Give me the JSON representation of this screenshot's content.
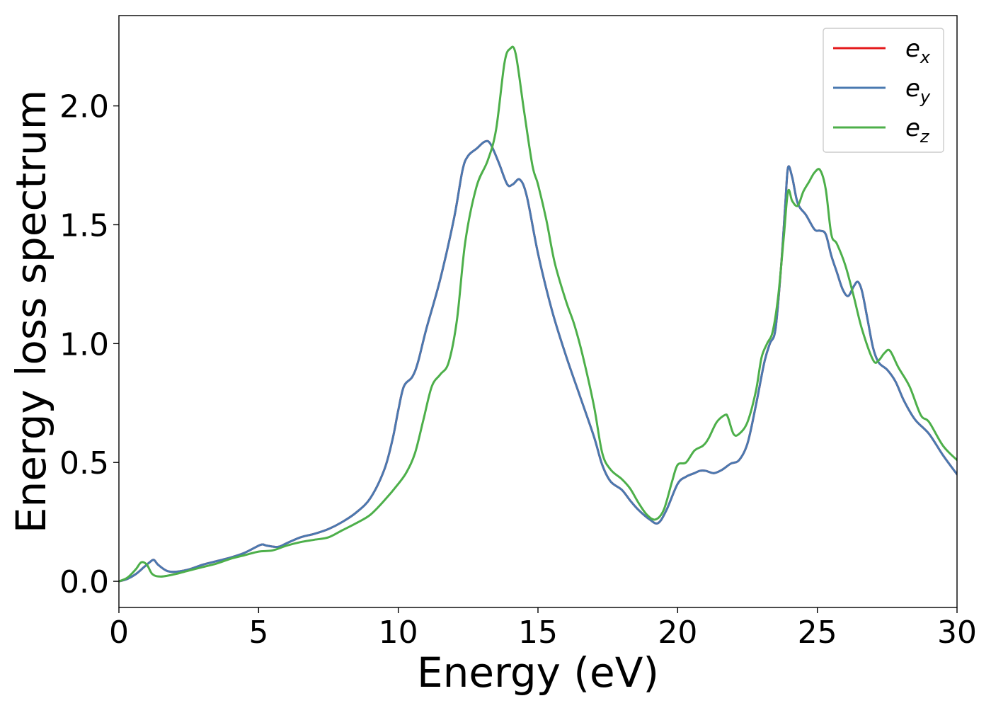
{
  "chart_data": {
    "type": "line",
    "title": "",
    "xlabel": "Energy (eV)",
    "ylabel": "Energy loss spectrum",
    "xlim": [
      0,
      30
    ],
    "ylim": [
      -0.11,
      2.38
    ],
    "xticks": [
      0,
      5,
      10,
      15,
      20,
      25,
      30
    ],
    "xtick_labels": [
      "0",
      "5",
      "10",
      "15",
      "20",
      "25",
      "30"
    ],
    "yticks": [
      0.0,
      0.5,
      1.0,
      1.5,
      2.0
    ],
    "ytick_labels": [
      "0.0",
      "0.5",
      "1.0",
      "1.5",
      "2.0"
    ],
    "grid": false,
    "legend_position": "top-right",
    "series": [
      {
        "name": "e_x",
        "label_base": "e",
        "label_sub": "x",
        "color": "#e41a1c",
        "x": [
          0,
          0.3,
          0.6,
          0.9,
          1.1,
          1.25,
          1.4,
          1.7,
          2.0,
          2.5,
          3.0,
          3.5,
          4.0,
          4.5,
          5.0,
          5.15,
          5.3,
          5.7,
          6.0,
          6.5,
          7.0,
          7.5,
          8.0,
          8.5,
          9.0,
          9.5,
          9.8,
          10.0,
          10.2,
          10.5,
          10.7,
          11.0,
          11.5,
          12.0,
          12.3,
          12.5,
          12.8,
          13.1,
          13.3,
          13.6,
          13.9,
          14.1,
          14.35,
          14.6,
          15.0,
          15.5,
          16.0,
          16.5,
          17.0,
          17.3,
          17.6,
          18.0,
          18.3,
          18.6,
          19.0,
          19.3,
          19.6,
          20.0,
          20.3,
          20.6,
          20.8,
          21.0,
          21.3,
          21.6,
          21.9,
          22.2,
          22.5,
          22.8,
          23.1,
          23.3,
          23.5,
          23.7,
          23.85,
          23.95,
          24.1,
          24.3,
          24.6,
          24.9,
          25.1,
          25.3,
          25.5,
          25.7,
          25.9,
          26.1,
          26.3,
          26.45,
          26.6,
          26.8,
          27.0,
          27.2,
          27.5,
          27.8,
          28.1,
          28.5,
          29.0,
          29.5,
          30.0
        ],
        "y": [
          0.0,
          0.01,
          0.03,
          0.06,
          0.08,
          0.09,
          0.07,
          0.045,
          0.04,
          0.05,
          0.07,
          0.085,
          0.1,
          0.12,
          0.15,
          0.155,
          0.15,
          0.145,
          0.16,
          0.185,
          0.2,
          0.22,
          0.25,
          0.29,
          0.35,
          0.47,
          0.6,
          0.72,
          0.82,
          0.86,
          0.92,
          1.06,
          1.27,
          1.53,
          1.73,
          1.79,
          1.82,
          1.85,
          1.84,
          1.76,
          1.67,
          1.67,
          1.69,
          1.62,
          1.38,
          1.14,
          0.95,
          0.78,
          0.61,
          0.49,
          0.42,
          0.385,
          0.34,
          0.3,
          0.26,
          0.245,
          0.3,
          0.41,
          0.44,
          0.455,
          0.465,
          0.465,
          0.455,
          0.47,
          0.495,
          0.51,
          0.58,
          0.74,
          0.92,
          1.0,
          1.06,
          1.32,
          1.58,
          1.74,
          1.7,
          1.59,
          1.54,
          1.48,
          1.475,
          1.46,
          1.37,
          1.3,
          1.23,
          1.2,
          1.24,
          1.26,
          1.22,
          1.1,
          0.98,
          0.92,
          0.89,
          0.84,
          0.76,
          0.68,
          0.62,
          0.53,
          0.45
        ]
      },
      {
        "name": "e_y",
        "label_base": "e",
        "label_sub": "y",
        "color": "#4a79b0",
        "x": [
          0,
          0.3,
          0.6,
          0.9,
          1.1,
          1.25,
          1.4,
          1.7,
          2.0,
          2.5,
          3.0,
          3.5,
          4.0,
          4.5,
          5.0,
          5.15,
          5.3,
          5.7,
          6.0,
          6.5,
          7.0,
          7.5,
          8.0,
          8.5,
          9.0,
          9.5,
          9.8,
          10.0,
          10.2,
          10.5,
          10.7,
          11.0,
          11.5,
          12.0,
          12.3,
          12.5,
          12.8,
          13.1,
          13.3,
          13.6,
          13.9,
          14.1,
          14.35,
          14.6,
          15.0,
          15.5,
          16.0,
          16.5,
          17.0,
          17.3,
          17.6,
          18.0,
          18.3,
          18.6,
          19.0,
          19.3,
          19.6,
          20.0,
          20.3,
          20.6,
          20.8,
          21.0,
          21.3,
          21.6,
          21.9,
          22.2,
          22.5,
          22.8,
          23.1,
          23.3,
          23.5,
          23.7,
          23.85,
          23.95,
          24.1,
          24.3,
          24.6,
          24.9,
          25.1,
          25.3,
          25.5,
          25.7,
          25.9,
          26.1,
          26.3,
          26.45,
          26.6,
          26.8,
          27.0,
          27.2,
          27.5,
          27.8,
          28.1,
          28.5,
          29.0,
          29.5,
          30.0
        ],
        "y": [
          0.0,
          0.01,
          0.03,
          0.06,
          0.08,
          0.09,
          0.07,
          0.045,
          0.04,
          0.05,
          0.07,
          0.085,
          0.1,
          0.12,
          0.15,
          0.155,
          0.15,
          0.145,
          0.16,
          0.185,
          0.2,
          0.22,
          0.25,
          0.29,
          0.35,
          0.47,
          0.6,
          0.72,
          0.82,
          0.86,
          0.92,
          1.06,
          1.27,
          1.53,
          1.73,
          1.79,
          1.82,
          1.85,
          1.84,
          1.76,
          1.67,
          1.67,
          1.69,
          1.62,
          1.38,
          1.14,
          0.95,
          0.78,
          0.61,
          0.49,
          0.42,
          0.385,
          0.34,
          0.3,
          0.26,
          0.245,
          0.3,
          0.41,
          0.44,
          0.455,
          0.465,
          0.465,
          0.455,
          0.47,
          0.495,
          0.51,
          0.58,
          0.74,
          0.92,
          1.0,
          1.06,
          1.32,
          1.58,
          1.74,
          1.7,
          1.59,
          1.54,
          1.48,
          1.475,
          1.46,
          1.37,
          1.3,
          1.23,
          1.2,
          1.24,
          1.26,
          1.22,
          1.1,
          0.98,
          0.92,
          0.89,
          0.84,
          0.76,
          0.68,
          0.62,
          0.53,
          0.45
        ]
      },
      {
        "name": "e_z",
        "label_base": "e",
        "label_sub": "z",
        "color": "#4daf4a",
        "x": [
          0,
          0.3,
          0.6,
          0.8,
          1.0,
          1.2,
          1.5,
          2.0,
          2.5,
          3.0,
          3.5,
          4.0,
          4.5,
          5.0,
          5.5,
          6.0,
          6.5,
          7.0,
          7.5,
          8.0,
          8.5,
          9.0,
          9.5,
          10.0,
          10.3,
          10.6,
          10.9,
          11.2,
          11.5,
          11.8,
          12.1,
          12.4,
          12.8,
          13.2,
          13.5,
          13.8,
          14.0,
          14.2,
          14.5,
          14.8,
          15.0,
          15.3,
          15.6,
          16.0,
          16.3,
          16.6,
          17.0,
          17.3,
          17.6,
          18.0,
          18.3,
          18.6,
          18.9,
          19.2,
          19.5,
          19.8,
          20.0,
          20.3,
          20.6,
          20.9,
          21.1,
          21.4,
          21.7,
          21.8,
          22.0,
          22.2,
          22.5,
          22.8,
          23.0,
          23.2,
          23.4,
          23.6,
          23.8,
          23.95,
          24.1,
          24.3,
          24.5,
          24.7,
          24.9,
          25.1,
          25.3,
          25.5,
          25.7,
          26.0,
          26.3,
          26.6,
          27.0,
          27.2,
          27.4,
          27.6,
          27.9,
          28.3,
          28.7,
          29.0,
          29.5,
          30.0
        ],
        "y": [
          0.0,
          0.015,
          0.05,
          0.08,
          0.07,
          0.03,
          0.02,
          0.03,
          0.045,
          0.06,
          0.075,
          0.095,
          0.11,
          0.125,
          0.13,
          0.15,
          0.165,
          0.175,
          0.185,
          0.215,
          0.245,
          0.28,
          0.34,
          0.41,
          0.46,
          0.54,
          0.68,
          0.82,
          0.87,
          0.92,
          1.1,
          1.43,
          1.66,
          1.77,
          1.9,
          2.18,
          2.24,
          2.22,
          1.98,
          1.75,
          1.67,
          1.52,
          1.34,
          1.18,
          1.08,
          0.95,
          0.74,
          0.54,
          0.47,
          0.43,
          0.39,
          0.33,
          0.28,
          0.26,
          0.3,
          0.42,
          0.49,
          0.5,
          0.55,
          0.57,
          0.6,
          0.67,
          0.7,
          0.69,
          0.62,
          0.62,
          0.67,
          0.8,
          0.94,
          1.0,
          1.05,
          1.2,
          1.45,
          1.64,
          1.6,
          1.58,
          1.64,
          1.68,
          1.72,
          1.73,
          1.65,
          1.46,
          1.42,
          1.33,
          1.2,
          1.06,
          0.93,
          0.93,
          0.96,
          0.97,
          0.9,
          0.82,
          0.7,
          0.67,
          0.57,
          0.51
        ]
      }
    ]
  }
}
